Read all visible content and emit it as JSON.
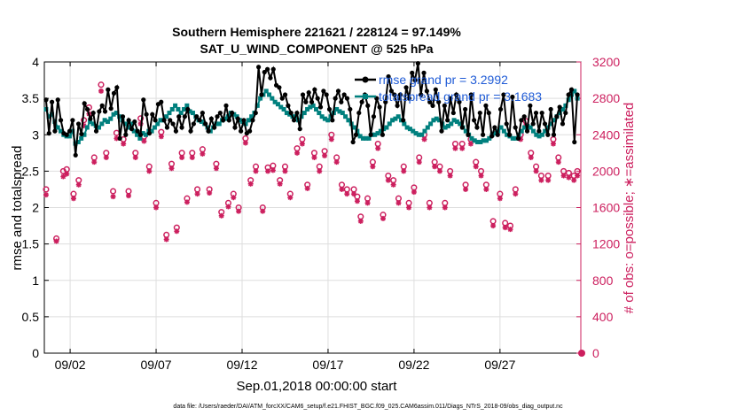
{
  "chart_data": {
    "type": "line",
    "title_line1": "Southern Hemisphere 221621 / 228124 = 97.149%",
    "title_line2": "SAT_U_WIND_COMPONENT @ 525 hPa",
    "xlabel": "Sep.01,2018 00:00:00 start",
    "ylabel_left": "rmse and totalspread",
    "ylabel_right": "# of obs: o=possible; ∗=assimilated",
    "footer": "data file: /Users/raeder/DAI/ATM_forcXX/CAM6_setup/f.e21.FHIST_BGC.f09_025.CAM6assim.011/Diags_NTrS_2018-09/obs_diag_output.nc",
    "x_range": [
      0,
      31.2
    ],
    "x_ticks": [
      {
        "x": 1.5,
        "label": "09/02"
      },
      {
        "x": 6.5,
        "label": "09/07"
      },
      {
        "x": 11.5,
        "label": "09/12"
      },
      {
        "x": 16.5,
        "label": "09/17"
      },
      {
        "x": 21.5,
        "label": "09/22"
      },
      {
        "x": 26.5,
        "label": "09/27"
      }
    ],
    "ylim_left": [
      0,
      4
    ],
    "yticks_left": [
      "0",
      "0.5",
      "1",
      "1.5",
      "2",
      "2.5",
      "3",
      "3.5",
      "4"
    ],
    "ylim_right": [
      0,
      3200
    ],
    "yticks_right": [
      "0",
      "400",
      "800",
      "1200",
      "1600",
      "2000",
      "2400",
      "2800",
      "3200"
    ],
    "legend": [
      {
        "name": "rmse",
        "text": "rmse grand pr = 3.2992",
        "color": "#000000"
      },
      {
        "name": "totalspread",
        "text": "totalspread grand pr = 3.1683",
        "color": "#00807e"
      }
    ],
    "colors": {
      "rmse": "#000000",
      "spread": "#00807e",
      "obs": "#cc1f5e"
    },
    "series": [
      {
        "name": "rmse",
        "values": [
          3.48,
          3.02,
          3.45,
          3.05,
          3.48,
          3.2,
          3.02,
          3.0,
          3.05,
          3.2,
          2.72,
          3.15,
          3.01,
          3.43,
          3.35,
          3.22,
          3.3,
          3.05,
          3.32,
          3.4,
          3.32,
          3.62,
          3.36,
          3.57,
          3.65,
          2.95,
          3.25,
          3.0,
          3.2,
          3.08,
          3.18,
          3.05,
          3.0,
          3.48,
          3.28,
          3.02,
          3.28,
          3.2,
          3.42,
          3.45,
          3.2,
          3.1,
          3.2,
          3.15,
          3.05,
          3.25,
          3.1,
          3.25,
          3.35,
          3.05,
          3.15,
          3.25,
          3.2,
          3.3,
          3.15,
          3.05,
          3.22,
          3.1,
          3.25,
          3.3,
          3.2,
          3.4,
          3.2,
          3.3,
          3.1,
          3.22,
          3.05,
          3.2,
          3.02,
          3.05,
          3.2,
          3.3,
          3.93,
          3.55,
          3.86,
          3.9,
          3.78,
          3.9,
          3.68,
          3.65,
          3.5,
          3.55,
          3.4,
          3.3,
          3.2,
          3.3,
          3.08,
          3.55,
          3.45,
          3.58,
          3.45,
          3.62,
          3.5,
          3.38,
          3.6,
          3.55,
          3.35,
          3.2,
          3.5,
          3.6,
          3.45,
          3.55,
          3.5,
          3.35,
          2.9,
          3.0,
          3.3,
          3.45,
          3.55,
          3.4,
          3.0,
          3.25,
          3.5,
          3.38,
          3.0,
          3.45,
          3.8,
          3.6,
          3.55,
          3.4,
          3.55,
          3.2,
          3.65,
          3.5,
          3.85,
          3.75,
          3.98,
          3.55,
          3.85,
          3.6,
          3.45,
          3.4,
          3.62,
          3.45,
          3.05,
          3.4,
          3.2,
          3.5,
          3.3,
          3.55,
          3.45,
          3.1,
          3.35,
          3.0,
          3.55,
          3.2,
          3.1,
          3.3,
          3.0,
          3.4,
          3.3,
          2.98,
          3.1,
          3.0,
          3.35,
          3.55,
          3.15,
          3.0,
          3.52,
          3.1,
          2.95,
          3.2,
          3.25,
          3.05,
          3.4,
          3.15,
          3.3,
          3.05,
          3.3,
          3.15,
          3.0,
          3.35,
          3.0,
          3.25,
          3.38,
          3.15,
          3.3,
          3.55,
          3.62,
          2.9,
          3.55
        ]
      },
      {
        "name": "totalspread",
        "values": [
          3.35,
          3.25,
          3.28,
          3.18,
          3.1,
          3.05,
          3.0,
          2.98,
          2.98,
          3.05,
          2.88,
          2.9,
          2.95,
          3.0,
          3.1,
          3.18,
          3.15,
          3.12,
          3.1,
          3.15,
          3.2,
          3.18,
          3.22,
          3.28,
          3.3,
          3.25,
          3.2,
          3.15,
          3.1,
          3.15,
          3.05,
          3.0,
          2.95,
          3.02,
          3.0,
          3.05,
          3.05,
          3.1,
          3.15,
          3.2,
          3.2,
          3.25,
          3.3,
          3.35,
          3.4,
          3.35,
          3.3,
          3.35,
          3.4,
          3.32,
          3.3,
          3.25,
          3.2,
          3.18,
          3.15,
          3.1,
          3.05,
          3.1,
          3.15,
          3.15,
          3.2,
          3.22,
          3.25,
          3.3,
          3.28,
          3.25,
          3.2,
          3.18,
          3.15,
          3.2,
          3.25,
          3.3,
          3.4,
          3.5,
          3.55,
          3.6,
          3.55,
          3.5,
          3.45,
          3.42,
          3.38,
          3.35,
          3.3,
          3.28,
          3.25,
          3.25,
          3.2,
          3.25,
          3.3,
          3.35,
          3.38,
          3.4,
          3.35,
          3.3,
          3.25,
          3.22,
          3.2,
          3.25,
          3.3,
          3.35,
          3.32,
          3.3,
          3.25,
          3.2,
          3.15,
          3.1,
          3.05,
          2.98,
          2.95,
          2.95,
          2.95,
          3.0,
          3.0,
          3.02,
          3.05,
          3.08,
          3.1,
          3.15,
          3.2,
          3.22,
          3.25,
          3.2,
          3.15,
          3.1,
          3.08,
          3.05,
          3.02,
          3.0,
          3.0,
          3.05,
          3.1,
          3.15,
          3.2,
          3.22,
          3.2,
          3.15,
          3.1,
          3.12,
          3.15,
          3.2,
          3.18,
          3.15,
          3.1,
          3.05,
          3.0,
          2.95,
          2.92,
          2.9,
          2.9,
          2.92,
          2.92,
          2.95,
          3.0,
          3.02,
          3.05,
          3.1,
          3.05,
          3.0,
          2.98,
          2.95,
          2.95,
          3.0,
          3.05,
          3.1,
          3.12,
          3.1,
          3.05,
          3.0,
          2.98,
          3.0,
          3.05,
          3.1,
          3.15,
          3.2,
          3.25,
          3.3,
          3.35,
          3.4,
          3.48,
          3.55,
          3.6,
          3.5
        ]
      }
    ],
    "obs_possible": [
      [
        0.1,
        1800
      ],
      [
        0.7,
        1260
      ],
      [
        1.1,
        2000
      ],
      [
        1.3,
        2020
      ],
      [
        1.7,
        1750
      ],
      [
        2.0,
        1900
      ],
      [
        2.3,
        2560
      ],
      [
        2.6,
        2700
      ],
      [
        2.9,
        2150
      ],
      [
        3.3,
        2950
      ],
      [
        3.6,
        2200
      ],
      [
        4.0,
        1780
      ],
      [
        4.2,
        2420
      ],
      [
        4.6,
        2350
      ],
      [
        4.9,
        1780
      ],
      [
        5.3,
        2200
      ],
      [
        5.6,
        2580
      ],
      [
        5.8,
        2380
      ],
      [
        6.1,
        2050
      ],
      [
        6.5,
        1650
      ],
      [
        6.8,
        2430
      ],
      [
        7.1,
        1300
      ],
      [
        7.4,
        2080
      ],
      [
        7.7,
        1380
      ],
      [
        8.0,
        2200
      ],
      [
        8.3,
        1700
      ],
      [
        8.6,
        2200
      ],
      [
        8.9,
        1800
      ],
      [
        9.2,
        2240
      ],
      [
        9.6,
        1800
      ],
      [
        10.0,
        2080
      ],
      [
        10.3,
        1550
      ],
      [
        10.7,
        1650
      ],
      [
        11.0,
        1750
      ],
      [
        11.3,
        1600
      ],
      [
        11.7,
        2360
      ],
      [
        12.0,
        1900
      ],
      [
        12.3,
        2050
      ],
      [
        12.7,
        1600
      ],
      [
        13.0,
        2040
      ],
      [
        13.3,
        2060
      ],
      [
        13.7,
        1900
      ],
      [
        14.0,
        2050
      ],
      [
        14.3,
        1750
      ],
      [
        14.7,
        2250
      ],
      [
        15.0,
        2350
      ],
      [
        15.3,
        1850
      ],
      [
        15.7,
        2200
      ],
      [
        16.0,
        2050
      ],
      [
        16.3,
        2220
      ],
      [
        16.7,
        2400
      ],
      [
        17.0,
        2150
      ],
      [
        17.3,
        1850
      ],
      [
        17.6,
        1800
      ],
      [
        18.0,
        1800
      ],
      [
        18.2,
        1720
      ],
      [
        18.4,
        1500
      ],
      [
        18.8,
        1700
      ],
      [
        19.1,
        2100
      ],
      [
        19.4,
        2300
      ],
      [
        19.7,
        1520
      ],
      [
        20.0,
        1950
      ],
      [
        20.3,
        1900
      ],
      [
        20.6,
        1700
      ],
      [
        20.9,
        2050
      ],
      [
        21.2,
        1650
      ],
      [
        21.5,
        1820
      ],
      [
        21.8,
        2150
      ],
      [
        22.1,
        2400
      ],
      [
        22.4,
        1650
      ],
      [
        22.7,
        2100
      ],
      [
        23.0,
        2050
      ],
      [
        23.3,
        1650
      ],
      [
        23.6,
        2000
      ],
      [
        23.9,
        2300
      ],
      [
        24.3,
        2300
      ],
      [
        24.5,
        1850
      ],
      [
        24.8,
        2350
      ],
      [
        25.1,
        2100
      ],
      [
        25.4,
        2000
      ],
      [
        25.7,
        1850
      ],
      [
        26.1,
        1450
      ],
      [
        26.5,
        1750
      ],
      [
        26.8,
        1430
      ],
      [
        27.1,
        1400
      ],
      [
        27.4,
        1800
      ],
      [
        27.7,
        2400
      ],
      [
        28.0,
        2550
      ],
      [
        28.3,
        2200
      ],
      [
        28.6,
        2050
      ],
      [
        28.9,
        1950
      ],
      [
        29.3,
        1950
      ],
      [
        29.6,
        2350
      ],
      [
        29.9,
        2150
      ],
      [
        30.2,
        2000
      ],
      [
        30.5,
        1980
      ],
      [
        30.8,
        1950
      ],
      [
        31.0,
        2000
      ]
    ],
    "obs_assimilated": [
      [
        0.1,
        1740
      ],
      [
        0.7,
        1230
      ],
      [
        1.1,
        1940
      ],
      [
        1.3,
        1970
      ],
      [
        1.7,
        1700
      ],
      [
        2.0,
        1850
      ],
      [
        2.3,
        2500
      ],
      [
        2.6,
        2630
      ],
      [
        2.9,
        2100
      ],
      [
        3.3,
        2880
      ],
      [
        3.6,
        2150
      ],
      [
        4.0,
        1720
      ],
      [
        4.2,
        2360
      ],
      [
        4.6,
        2300
      ],
      [
        4.9,
        1730
      ],
      [
        5.3,
        2150
      ],
      [
        5.6,
        2520
      ],
      [
        5.8,
        2330
      ],
      [
        6.1,
        2000
      ],
      [
        6.5,
        1600
      ],
      [
        6.8,
        2380
      ],
      [
        7.1,
        1250
      ],
      [
        7.4,
        2030
      ],
      [
        7.7,
        1340
      ],
      [
        8.0,
        2150
      ],
      [
        8.3,
        1660
      ],
      [
        8.6,
        2150
      ],
      [
        8.9,
        1750
      ],
      [
        9.2,
        2190
      ],
      [
        9.6,
        1760
      ],
      [
        10.0,
        2030
      ],
      [
        10.3,
        1510
      ],
      [
        10.7,
        1610
      ],
      [
        11.0,
        1710
      ],
      [
        11.3,
        1560
      ],
      [
        11.7,
        2310
      ],
      [
        12.0,
        1860
      ],
      [
        12.3,
        2000
      ],
      [
        12.7,
        1560
      ],
      [
        13.0,
        2000
      ],
      [
        13.3,
        2010
      ],
      [
        13.7,
        1860
      ],
      [
        14.0,
        2000
      ],
      [
        14.3,
        1710
      ],
      [
        14.7,
        2200
      ],
      [
        15.0,
        2300
      ],
      [
        15.3,
        1810
      ],
      [
        15.7,
        2150
      ],
      [
        16.0,
        2000
      ],
      [
        16.3,
        2170
      ],
      [
        16.7,
        2350
      ],
      [
        17.0,
        2100
      ],
      [
        17.3,
        1800
      ],
      [
        17.6,
        1750
      ],
      [
        18.0,
        1750
      ],
      [
        18.2,
        1670
      ],
      [
        18.4,
        1450
      ],
      [
        18.8,
        1650
      ],
      [
        19.1,
        2050
      ],
      [
        19.4,
        2250
      ],
      [
        19.7,
        1480
      ],
      [
        20.0,
        1900
      ],
      [
        20.3,
        1850
      ],
      [
        20.6,
        1650
      ],
      [
        20.9,
        2000
      ],
      [
        21.2,
        1600
      ],
      [
        21.5,
        1770
      ],
      [
        21.8,
        2100
      ],
      [
        22.1,
        2350
      ],
      [
        22.4,
        1600
      ],
      [
        22.7,
        2050
      ],
      [
        23.0,
        2000
      ],
      [
        23.3,
        1600
      ],
      [
        23.6,
        1950
      ],
      [
        23.9,
        2250
      ],
      [
        24.3,
        2250
      ],
      [
        24.5,
        1800
      ],
      [
        24.8,
        2300
      ],
      [
        25.1,
        2050
      ],
      [
        25.4,
        1950
      ],
      [
        25.7,
        1800
      ],
      [
        26.1,
        1400
      ],
      [
        26.5,
        1700
      ],
      [
        26.8,
        1380
      ],
      [
        27.1,
        1360
      ],
      [
        27.4,
        1750
      ],
      [
        27.7,
        2350
      ],
      [
        28.0,
        2500
      ],
      [
        28.3,
        2150
      ],
      [
        28.6,
        2000
      ],
      [
        28.9,
        1900
      ],
      [
        29.3,
        1900
      ],
      [
        29.6,
        2300
      ],
      [
        29.9,
        2100
      ],
      [
        30.2,
        1950
      ],
      [
        30.5,
        1930
      ],
      [
        30.8,
        1900
      ],
      [
        31.0,
        1950
      ]
    ]
  }
}
